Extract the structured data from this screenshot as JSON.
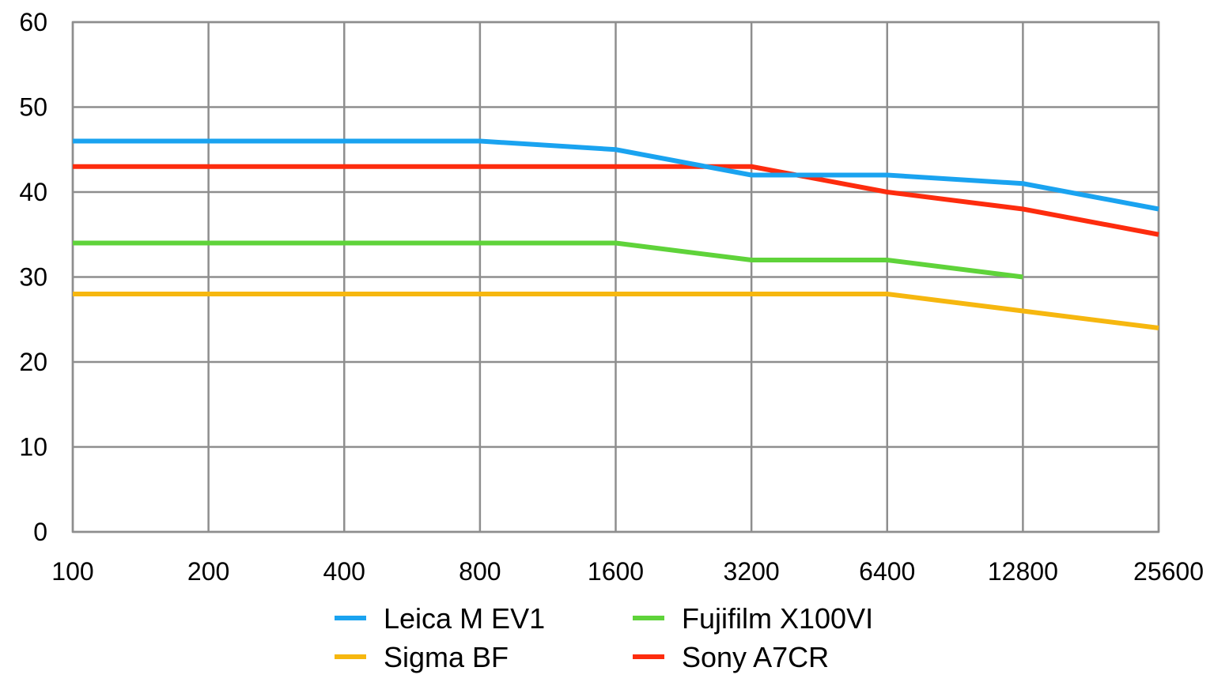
{
  "chart_data": {
    "type": "line",
    "title": "",
    "xlabel": "",
    "ylabel": "",
    "categories": [
      "100",
      "200",
      "400",
      "800",
      "1600",
      "3200",
      "6400",
      "12800",
      "25600"
    ],
    "y_ticks": [
      "0",
      "10",
      "20",
      "30",
      "40",
      "50",
      "60"
    ],
    "ylim": [
      0,
      60
    ],
    "grid": true,
    "legend_position": "bottom",
    "series": [
      {
        "name": "Leica M EV1",
        "color": "#1aa3f0",
        "values": [
          46,
          46,
          46,
          46,
          45,
          42,
          42,
          41,
          38
        ]
      },
      {
        "name": "Fujifilm X100VI",
        "color": "#5fd33a",
        "values": [
          34,
          34,
          34,
          34,
          34,
          32,
          32,
          30,
          null
        ]
      },
      {
        "name": "Sigma BF",
        "color": "#f6b70f",
        "values": [
          28,
          28,
          28,
          28,
          28,
          28,
          28,
          26,
          24
        ]
      },
      {
        "name": "Sony A7CR",
        "color": "#fd2c0e",
        "values": [
          43,
          43,
          43,
          43,
          43,
          43,
          40,
          38,
          35
        ]
      }
    ]
  }
}
